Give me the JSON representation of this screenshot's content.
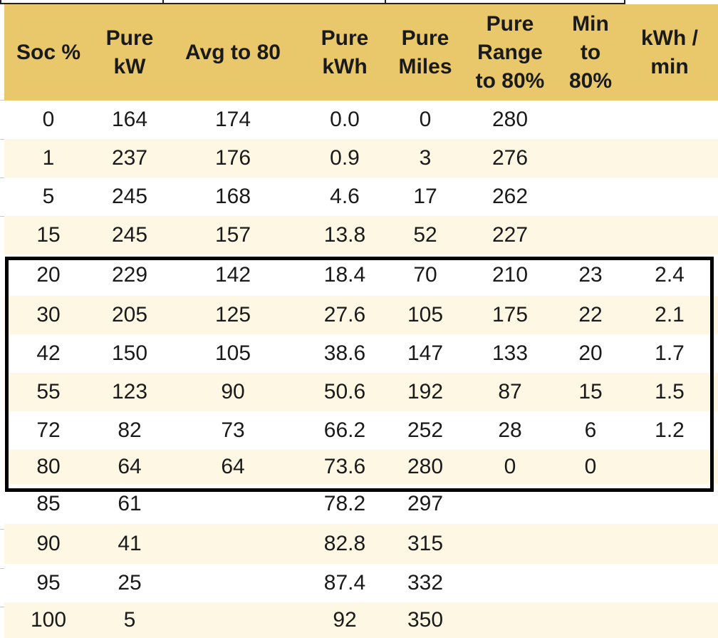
{
  "table": {
    "headers": [
      "Soc %",
      "Pure\nkW",
      "Avg to 80",
      "Pure\nkWh",
      "Pure\nMiles",
      "Pure\nRange\nto 80%",
      "Min\nto\n80%",
      "kWh /\nmin"
    ],
    "rows": [
      [
        "0",
        "164",
        "174",
        "0.0",
        "0",
        "280",
        "",
        ""
      ],
      [
        "1",
        "237",
        "176",
        "0.9",
        "3",
        "276",
        "",
        ""
      ],
      [
        "5",
        "245",
        "168",
        "4.6",
        "17",
        "262",
        "",
        ""
      ],
      [
        "15",
        "245",
        "157",
        "13.8",
        "52",
        "227",
        "",
        ""
      ],
      [
        "20",
        "229",
        "142",
        "18.4",
        "70",
        "210",
        "23",
        "2.4"
      ],
      [
        "30",
        "205",
        "125",
        "27.6",
        "105",
        "175",
        "22",
        "2.1"
      ],
      [
        "42",
        "150",
        "105",
        "38.6",
        "147",
        "133",
        "20",
        "1.7"
      ],
      [
        "55",
        "123",
        "90",
        "50.6",
        "192",
        "87",
        "15",
        "1.5"
      ],
      [
        "72",
        "82",
        "73",
        "66.2",
        "252",
        "28",
        "6",
        "1.2"
      ],
      [
        "80",
        "64",
        "64",
        "73.6",
        "280",
        "0",
        "0",
        ""
      ],
      [
        "85",
        "61",
        "",
        "78.2",
        "297",
        "",
        "",
        ""
      ],
      [
        "90",
        "41",
        "",
        "82.8",
        "315",
        "",
        "",
        ""
      ],
      [
        "95",
        "25",
        "",
        "87.4",
        "332",
        "",
        "",
        ""
      ],
      [
        "100",
        "5",
        "",
        "92",
        "350",
        "",
        "",
        ""
      ]
    ]
  },
  "colors": {
    "header_background": "#e8c86a",
    "band_background": "#fdf7e3",
    "row_background": "#ffffff",
    "highlight_border": "#000000"
  }
}
